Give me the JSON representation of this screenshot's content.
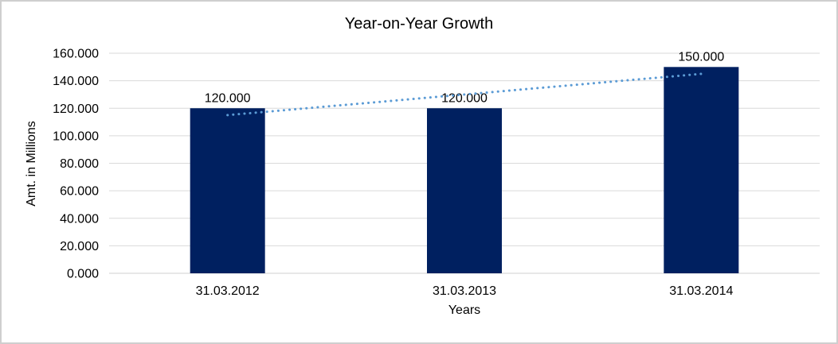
{
  "chart_data": {
    "type": "bar",
    "title": "Year-on-Year Growth",
    "xlabel": "Years",
    "ylabel": "Amt. in Millions",
    "categories": [
      "31.03.2012",
      "31.03.2013",
      "31.03.2014"
    ],
    "series": [
      {
        "name": "Amt. in Millions",
        "values": [
          120,
          120,
          150
        ],
        "data_labels": [
          "120.000",
          "120.000",
          "150.000"
        ]
      }
    ],
    "ylim": [
      0,
      160
    ],
    "ytick_step": 20,
    "yticks": [
      {
        "value": 0,
        "label": "0.000"
      },
      {
        "value": 20,
        "label": "20.000"
      },
      {
        "value": 40,
        "label": "40.000"
      },
      {
        "value": 60,
        "label": "60.000"
      },
      {
        "value": 80,
        "label": "80.000"
      },
      {
        "value": 100,
        "label": "100.000"
      },
      {
        "value": 120,
        "label": "120.000"
      },
      {
        "value": 140,
        "label": "140.000"
      },
      {
        "value": 160,
        "label": "160.000"
      }
    ],
    "grid": true,
    "legend": "none",
    "trendline": {
      "type": "linear",
      "style": "dotted",
      "start_value": 115,
      "end_value": 145,
      "color": "#5B9BD5"
    },
    "colors": {
      "bar": "#002060",
      "gridline": "#D9D9D9",
      "axis_line": "#D2D2D2",
      "text": "#000000",
      "frame_border": "#CFCFCF"
    }
  }
}
